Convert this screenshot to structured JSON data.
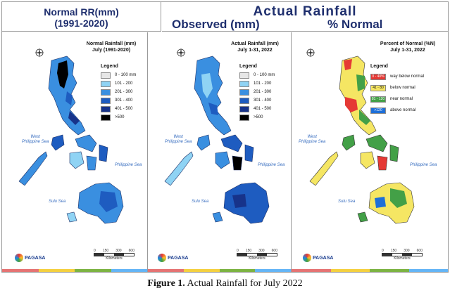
{
  "header": {
    "left_line1": "Normal RR(mm)",
    "left_line2": "(1991-2020)",
    "right_title": "Actual Rainfall",
    "right_sub1": "Observed (mm)",
    "right_sub2": "% Normal"
  },
  "panels": [
    {
      "title_line1": "Normal Rainfall (mm)",
      "title_line2": "July (1991-2020)",
      "legend_title": "Legend",
      "legend": [
        {
          "label": "0 - 100 mm",
          "color": "#e6e6e6"
        },
        {
          "label": "101 - 200",
          "color": "#8fd3f4"
        },
        {
          "label": "201 - 300",
          "color": "#3a8fe0"
        },
        {
          "label": "301 - 400",
          "color": "#1e5cc0"
        },
        {
          "label": "401 - 500",
          "color": "#17338a"
        },
        {
          "label": ">500",
          "color": "#000000"
        }
      ],
      "sea_west": "West\nPhilippine Sea",
      "sea_east": "Philippine Sea",
      "sea_south": "Sulu Sea"
    },
    {
      "title_line1": "Actual Rainfall (mm)",
      "title_line2": "July 1-31, 2022",
      "legend_title": "Legend",
      "legend": [
        {
          "label": "0 - 100 mm",
          "color": "#e6e6e6"
        },
        {
          "label": "101 - 200",
          "color": "#8fd3f4"
        },
        {
          "label": "201 - 300",
          "color": "#3a8fe0"
        },
        {
          "label": "301 - 400",
          "color": "#1e5cc0"
        },
        {
          "label": "401 - 500",
          "color": "#17338a"
        },
        {
          "label": ">500",
          "color": "#000000"
        }
      ],
      "sea_west": "West\nPhilippine Sea",
      "sea_east": "Philippine Sea",
      "sea_south": "Sulu Sea"
    },
    {
      "title_line1": "Percent of Normal (%N)",
      "title_line2": "July 1-31, 2022",
      "legend_title": "Legend",
      "legend": [
        {
          "range": "0 - 40%",
          "label": "way below normal",
          "color": "#e53935"
        },
        {
          "range": "41 - 80",
          "label": "below normal",
          "color": "#f5e663"
        },
        {
          "range": "81 - 120",
          "label": "near normal",
          "color": "#43a047"
        },
        {
          "range": ">120",
          "label": "above normal",
          "color": "#1e6fd8"
        }
      ],
      "sea_west": "West\nPhilippine Sea",
      "sea_east": "Philippine Sea",
      "sea_south": "Sulu Sea"
    }
  ],
  "logo_text": "PAGASA",
  "scale_labels": [
    "0",
    "150",
    "300",
    "600"
  ],
  "scale_unit": "Kilometers",
  "caption_bold": "Figure 1.",
  "caption_text": " Actual Rainfall for July 2022"
}
